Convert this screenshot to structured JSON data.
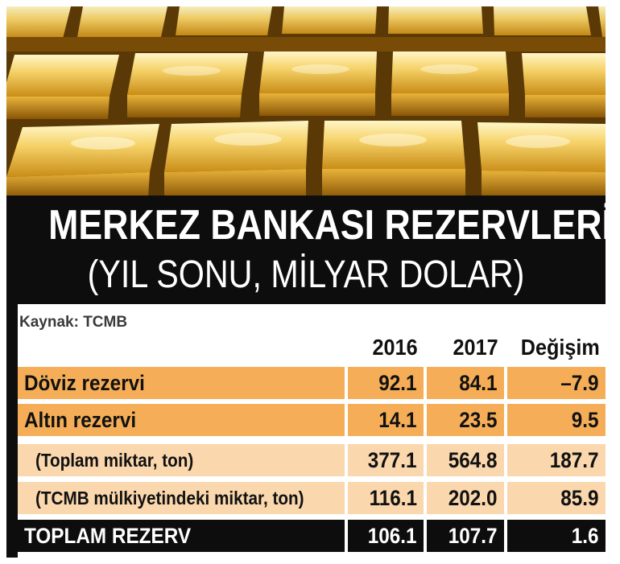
{
  "title": "MERKEZ BANKASI REZERVLERİ",
  "subtitle": "(YIL SONU, MİLYAR DOLAR)",
  "source": "Kaynak: TCMB",
  "colors": {
    "panel": "#0d0d0d",
    "main_row": "#f5ae57",
    "sub_row": "#fad7ad",
    "gold": "#d9a21b"
  },
  "table": {
    "columns": [
      "2016",
      "2017",
      "Değişim"
    ],
    "rows": [
      {
        "label": "Döviz rezervi",
        "v2016": "92.1",
        "v2017": "84.1",
        "change": "–7.9"
      },
      {
        "label": "Altın rezervi",
        "v2016": "14.1",
        "v2017": "23.5",
        "change": "9.5"
      },
      {
        "label": "(Toplam miktar, ton)",
        "v2016": "377.1",
        "v2017": "564.8",
        "change": "187.7"
      },
      {
        "label": "(TCMB mülkiyetindeki miktar, ton)",
        "v2016": "116.1",
        "v2017": "202.0",
        "change": "85.9"
      },
      {
        "label": "TOPLAM REZERV",
        "v2016": "106.1",
        "v2017": "107.7",
        "change": "1.6"
      }
    ]
  }
}
